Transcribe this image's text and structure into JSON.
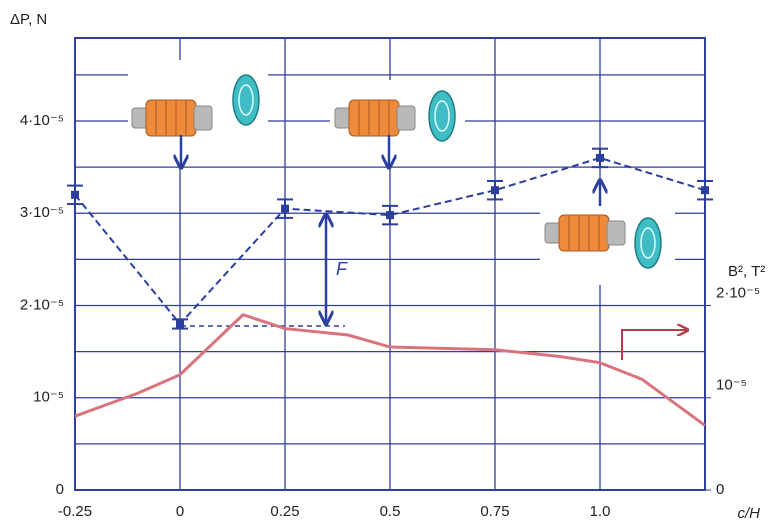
{
  "chart_data": {
    "type": "line",
    "x_label": "c/H",
    "y_label": "ΔP, N",
    "y2_label": "B², T²",
    "annotation": "F",
    "xlim": [
      -0.25,
      1.25
    ],
    "xticks": [
      -0.25,
      0,
      0.25,
      0.5,
      0.75,
      {
        "value": 1,
        "label": "1.0"
      }
    ],
    "ylim": [
      0,
      4.9e-05
    ],
    "yticks": [
      0,
      {
        "value": 1e-05,
        "label": "10⁻⁵"
      },
      {
        "value": 2e-05,
        "label": "2·10⁻⁵"
      },
      {
        "value": 3e-05,
        "label": "3·10⁻⁵"
      },
      {
        "value": 4e-05,
        "label": "4·10⁻⁵"
      }
    ],
    "minor_yticks": [
      5e-06,
      1.5e-05,
      2.5e-05,
      3.5e-05,
      4.5e-05
    ],
    "y2lim": [
      0,
      4.9e-05
    ],
    "y2ticks": [
      0,
      {
        "value": 1e-05,
        "label": "10⁻⁵"
      },
      {
        "value": 2e-05,
        "label": "2·10⁻⁵"
      }
    ],
    "grid": true,
    "series": [
      {
        "name": "ΔP",
        "color": "#2b3f9e",
        "dashed": true,
        "x": [
          -0.25,
          0,
          0.25,
          0.5,
          0.75,
          1,
          1.25
        ],
        "values": [
          3.2e-05,
          1.8e-05,
          3.05e-05,
          2.98e-05,
          3.25e-05,
          3.6e-05,
          3.25e-05
        ],
        "errors": [
          1e-06,
          5e-07,
          1e-06,
          1e-06,
          1e-06,
          1e-06,
          1e-06
        ]
      },
      {
        "name": "B²",
        "color": "#d9747e",
        "axis": "y2",
        "x": [
          -0.25,
          -0.1,
          0,
          0.15,
          0.25,
          0.4,
          0.5,
          0.75,
          0.9,
          1,
          1.1,
          1.25
        ],
        "values": [
          8e-06,
          1.05e-05,
          1.25e-05,
          1.9e-05,
          1.75e-05,
          1.68e-05,
          1.55e-05,
          1.52e-05,
          1.45e-05,
          1.38e-05,
          1.2e-05,
          7e-06
        ]
      }
    ]
  }
}
